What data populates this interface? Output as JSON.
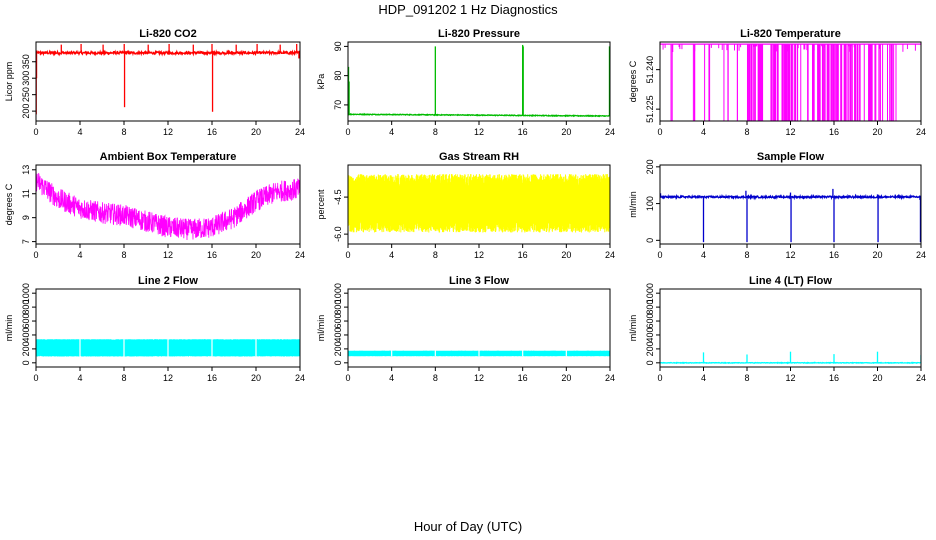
{
  "figure": {
    "title": "HDP_091202  1 Hz Diagnostics",
    "xlabel": "Hour of Day (UTC)"
  },
  "chart_data": [
    {
      "type": "line",
      "title": "Li-820 CO2",
      "ylabel": "Licor ppm",
      "color": "#ff0000",
      "xlim": [
        0,
        24
      ],
      "ylim": [
        170,
        410
      ],
      "xticks": [
        0,
        4,
        8,
        12,
        16,
        20,
        24
      ],
      "yticks": [
        200,
        250,
        300,
        350
      ],
      "yticklabels": [
        "200",
        "250",
        "300",
        "350"
      ],
      "baseline": 377,
      "noise": 8,
      "spikes": [
        {
          "x": 0.02,
          "y": 190
        },
        {
          "x": 0.05,
          "y": 300
        },
        {
          "x": 2.3,
          "y": 402
        },
        {
          "x": 4.1,
          "y": 404
        },
        {
          "x": 6.1,
          "y": 402
        },
        {
          "x": 8.02,
          "y": 404
        },
        {
          "x": 8.05,
          "y": 212
        },
        {
          "x": 10.2,
          "y": 402
        },
        {
          "x": 12.1,
          "y": 404
        },
        {
          "x": 14.3,
          "y": 402
        },
        {
          "x": 16.0,
          "y": 404
        },
        {
          "x": 16.05,
          "y": 198
        },
        {
          "x": 18.2,
          "y": 402
        },
        {
          "x": 20.1,
          "y": 404
        },
        {
          "x": 22.2,
          "y": 402
        },
        {
          "x": 23.7,
          "y": 404
        },
        {
          "x": 23.9,
          "y": 360
        }
      ]
    },
    {
      "type": "line",
      "title": "Li-820 Pressure",
      "ylabel": "kPa",
      "color": "#00bb00",
      "xlim": [
        0,
        24
      ],
      "ylim": [
        64.5,
        91.5
      ],
      "xticks": [
        0,
        4,
        8,
        12,
        16,
        20,
        24
      ],
      "yticks": [
        70,
        80,
        90
      ],
      "yticklabels": [
        "70",
        "80",
        "90"
      ],
      "baseline_start": 66.8,
      "baseline_end": 66.2,
      "noise": 0.25,
      "spikes": [
        {
          "x": 0.05,
          "y": 83
        },
        {
          "x": 0.1,
          "y": 78
        },
        {
          "x": 8.0,
          "y": 90
        },
        {
          "x": 16.0,
          "y": 90.5
        },
        {
          "x": 16.05,
          "y": 90
        },
        {
          "x": 23.95,
          "y": 90
        }
      ]
    },
    {
      "type": "line",
      "title": "Li-820 Temperature",
      "ylabel": "degrees C",
      "color": "#ff00ff",
      "xlim": [
        0,
        24
      ],
      "ylim": [
        51.2205,
        51.2505
      ],
      "xticks": [
        0,
        4,
        8,
        12,
        16,
        20,
        24
      ],
      "yticks": [
        51.225,
        51.24
      ],
      "yticklabels": [
        "51.225",
        "51.240"
      ],
      "high": 51.2497,
      "low": 51.2205
    },
    {
      "type": "line",
      "title": "Ambient Box Temperature",
      "ylabel": "degrees C",
      "color": "#ff00ff",
      "xlim": [
        0,
        24
      ],
      "ylim": [
        6.8,
        13.4
      ],
      "xticks": [
        0,
        4,
        8,
        12,
        16,
        20,
        24
      ],
      "yticks": [
        7,
        9,
        11,
        13
      ],
      "yticklabels": [
        "7",
        "9",
        "11",
        "13"
      ],
      "trend_x": [
        0,
        2,
        4,
        6,
        8,
        10,
        12,
        14,
        16,
        18,
        20,
        22,
        24
      ],
      "trend_y": [
        12.1,
        10.6,
        9.8,
        9.4,
        9.2,
        8.7,
        8.2,
        8.0,
        8.2,
        9.0,
        10.4,
        11.2,
        11.4
      ],
      "band": 0.9
    },
    {
      "type": "line",
      "title": "Gas Stream RH",
      "ylabel": "percent",
      "color": "#ffff00",
      "xlim": [
        0,
        24
      ],
      "ylim": [
        -6.4,
        -3.2
      ],
      "xticks": [
        0,
        4,
        8,
        12,
        16,
        20,
        24
      ],
      "yticks": [
        -6.0,
        -4.5
      ],
      "yticklabels": [
        "-6.0",
        "-4.5"
      ],
      "high": -3.6,
      "low": -5.9
    },
    {
      "type": "line",
      "title": "Sample Flow",
      "ylabel": "ml/min",
      "color": "#0000cc",
      "xlim": [
        0,
        24
      ],
      "ylim": [
        -10,
        205
      ],
      "xticks": [
        0,
        4,
        8,
        12,
        16,
        20,
        24
      ],
      "yticks": [
        0,
        100,
        200
      ],
      "yticklabels": [
        "0",
        "100",
        "200"
      ],
      "baseline": 118,
      "noise": 5,
      "spikes": [
        {
          "x": 0.05,
          "y": 128
        },
        {
          "x": 4.0,
          "y": -5
        },
        {
          "x": 7.9,
          "y": 135
        },
        {
          "x": 8.0,
          "y": -5
        },
        {
          "x": 12.0,
          "y": 130
        },
        {
          "x": 12.05,
          "y": -5
        },
        {
          "x": 15.9,
          "y": 140
        },
        {
          "x": 16.0,
          "y": -5
        },
        {
          "x": 20.0,
          "y": 125
        },
        {
          "x": 20.05,
          "y": -5
        },
        {
          "x": 23.9,
          "y": 110
        },
        {
          "x": 23.95,
          "y": -5
        }
      ]
    },
    {
      "type": "line",
      "title": "Line 2 Flow",
      "ylabel": "ml/min",
      "color": "#00ffff",
      "xlim": [
        0,
        24
      ],
      "ylim": [
        -60,
        1060
      ],
      "xticks": [
        0,
        4,
        8,
        12,
        16,
        20,
        24
      ],
      "yticks": [
        0,
        200,
        400,
        600,
        800,
        1000
      ],
      "yticklabels": [
        "0",
        "200",
        "400",
        "600",
        "800",
        "1000"
      ],
      "high": 340,
      "low": 90,
      "gaps": [
        4,
        8,
        12,
        16,
        20
      ]
    },
    {
      "type": "line",
      "title": "Line 3 Flow",
      "ylabel": "ml/min",
      "color": "#00ffff",
      "xlim": [
        0,
        24
      ],
      "ylim": [
        -60,
        1060
      ],
      "xticks": [
        0,
        4,
        8,
        12,
        16,
        20,
        24
      ],
      "yticks": [
        0,
        200,
        400,
        600,
        800,
        1000
      ],
      "yticklabels": [
        "0",
        "200",
        "400",
        "600",
        "800",
        "1000"
      ],
      "high": 175,
      "low": 95,
      "gaps": [
        4,
        8,
        12,
        16,
        20
      ]
    },
    {
      "type": "line",
      "title": "Line 4 (LT) Flow",
      "ylabel": "ml/min",
      "color": "#00ffff",
      "xlim": [
        0,
        24
      ],
      "ylim": [
        -60,
        1060
      ],
      "xticks": [
        0,
        4,
        8,
        12,
        16,
        20,
        24
      ],
      "yticks": [
        0,
        200,
        400,
        600,
        800,
        1000
      ],
      "yticklabels": [
        "0",
        "200",
        "400",
        "600",
        "800",
        "1000"
      ],
      "baseline": 0,
      "noise": 8,
      "spikes": [
        {
          "x": 4.0,
          "y": 150
        },
        {
          "x": 8.0,
          "y": 120
        },
        {
          "x": 12.0,
          "y": 160
        },
        {
          "x": 16.0,
          "y": 125
        },
        {
          "x": 20.0,
          "y": 160
        },
        {
          "x": 24.0,
          "y": 110
        }
      ]
    }
  ]
}
